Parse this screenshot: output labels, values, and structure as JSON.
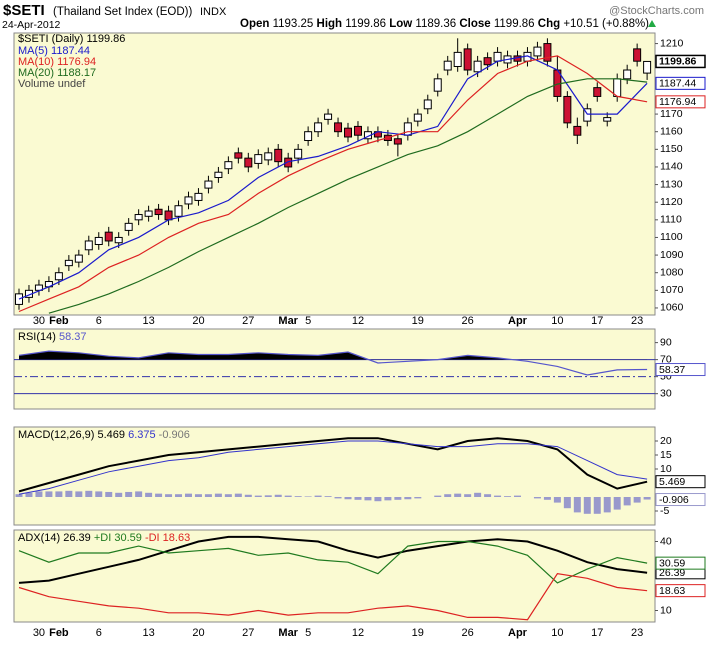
{
  "chart_data": [
    {
      "type": "candlestick",
      "title": "$SETI",
      "subtitle": "(Thailand Set Index (EOD))",
      "exchange": "INDX",
      "date": "24-Apr-2012",
      "watermark": "@StockCharts.com",
      "name": "$SETI (Daily)",
      "labels": {
        "open": "Open",
        "high": "High",
        "low": "Low",
        "close": "Close",
        "change": "Chg"
      },
      "change": "+10.51 (+0.88%)",
      "up_color": "#ffffff",
      "down_color": "#cc1133",
      "categories": [
        null,
        null,
        "30",
        null,
        "Feb",
        null,
        null,
        null,
        "6",
        null,
        null,
        null,
        null,
        "13",
        null,
        null,
        null,
        null,
        "20",
        null,
        null,
        null,
        null,
        "27",
        null,
        null,
        null,
        "Mar",
        null,
        "5",
        null,
        null,
        null,
        null,
        "12",
        null,
        null,
        null,
        null,
        null,
        "19",
        null,
        null,
        null,
        null,
        "26",
        null,
        null,
        null,
        null,
        "Apr",
        null,
        null,
        null,
        "10",
        null,
        null,
        null,
        "17",
        null,
        null,
        null,
        "23",
        null
      ],
      "open": [
        1062,
        1066,
        1070,
        1072,
        1076,
        1084,
        1086,
        1093,
        1096,
        1103,
        1097,
        1104,
        1110,
        1112,
        1116,
        1115,
        1112,
        1119,
        1121,
        1128,
        1134,
        1139,
        1148,
        1145,
        1142,
        1144,
        1150,
        1145,
        1145,
        1155,
        1160,
        1167,
        1165,
        1162,
        1163,
        1156,
        1160,
        1158,
        1156,
        1158,
        1166,
        1173,
        1183,
        1195,
        1197,
        1207,
        1194,
        1202,
        1200,
        1199,
        1203,
        1200,
        1203,
        1210,
        1195,
        1180,
        1163,
        1166,
        1185,
        1166,
        1180,
        1190,
        1207,
        1193.25
      ],
      "high": [
        1071,
        1073,
        1076,
        1078,
        1083,
        1090,
        1093,
        1101,
        1103,
        1106,
        1103,
        1111,
        1116,
        1118,
        1119,
        1118,
        1121,
        1126,
        1128,
        1135,
        1140,
        1146,
        1151,
        1148,
        1150,
        1151,
        1153,
        1148,
        1153,
        1163,
        1168,
        1173,
        1168,
        1165,
        1166,
        1163,
        1163,
        1161,
        1159,
        1168,
        1173,
        1181,
        1193,
        1203,
        1213,
        1210,
        1203,
        1205,
        1208,
        1206,
        1206,
        1208,
        1211,
        1213,
        1203,
        1183,
        1168,
        1176,
        1188,
        1171,
        1193,
        1198,
        1210,
        1199.86
      ],
      "low": [
        1059,
        1063,
        1067,
        1069,
        1073,
        1081,
        1083,
        1090,
        1093,
        1095,
        1094,
        1101,
        1107,
        1109,
        1110,
        1107,
        1109,
        1116,
        1118,
        1125,
        1131,
        1136,
        1142,
        1137,
        1139,
        1141,
        1140,
        1137,
        1142,
        1152,
        1157,
        1164,
        1157,
        1154,
        1155,
        1153,
        1154,
        1152,
        1146,
        1155,
        1163,
        1170,
        1180,
        1192,
        1194,
        1192,
        1191,
        1195,
        1197,
        1196,
        1197,
        1197,
        1200,
        1197,
        1177,
        1162,
        1153,
        1163,
        1177,
        1163,
        1177,
        1187,
        1197,
        1189.36
      ],
      "close": [
        1068,
        1070,
        1073,
        1075,
        1080,
        1087,
        1090,
        1098,
        1100,
        1098,
        1100,
        1108,
        1113,
        1115,
        1113,
        1110,
        1118,
        1123,
        1125,
        1132,
        1137,
        1143,
        1145,
        1140,
        1147,
        1148,
        1143,
        1140,
        1150,
        1160,
        1165,
        1170,
        1160,
        1157,
        1158,
        1160,
        1157,
        1155,
        1153,
        1165,
        1170,
        1178,
        1190,
        1200,
        1205,
        1195,
        1200,
        1198,
        1205,
        1203,
        1200,
        1205,
        1208,
        1200,
        1180,
        1165,
        1158,
        1173,
        1180,
        1168,
        1190,
        1195,
        1200,
        1199.86
      ],
      "x": [
        0,
        3,
        6,
        9,
        12,
        15,
        18,
        21,
        24,
        27,
        30,
        33,
        36,
        39,
        42,
        45,
        48,
        51,
        54,
        57,
        60,
        63
      ],
      "series": [
        {
          "name": "MA(5)",
          "color": "#1a1acc",
          "value_box": true,
          "values": [
            1065,
            1072,
            1080,
            1093,
            1100,
            1110,
            1114,
            1121,
            1134,
            1143,
            1146,
            1152,
            1160,
            1158,
            1163,
            1190,
            1200,
            1203,
            1195,
            1170,
            1170,
            1187.44
          ]
        },
        {
          "name": "MA(10)",
          "color": "#dd2222",
          "value_box": true,
          "values": [
            1058,
            1065,
            1072,
            1083,
            1090,
            1100,
            1108,
            1113,
            1125,
            1135,
            1143,
            1150,
            1155,
            1160,
            1160,
            1178,
            1193,
            1200,
            1203,
            1193,
            1180,
            1176.94
          ]
        },
        {
          "name": "MA(20)",
          "color": "#1f6b1f",
          "value_box": false,
          "values": [
            null,
            1057,
            1062,
            1068,
            1075,
            1083,
            1092,
            1100,
            1108,
            1117,
            1125,
            1133,
            1140,
            1147,
            1152,
            1160,
            1170,
            1180,
            1187,
            1190,
            1190,
            1188.17
          ]
        }
      ],
      "volume_label": "Volume undef",
      "ylim": [
        1056,
        1216
      ],
      "yticks": [
        1210,
        1170,
        1160,
        1150,
        1140,
        1130,
        1120,
        1110,
        1100,
        1090,
        1080,
        1070,
        1060
      ]
    },
    {
      "type": "line",
      "title": "RSI(14)",
      "x": [
        0,
        3,
        6,
        9,
        12,
        15,
        18,
        21,
        24,
        27,
        30,
        33,
        36,
        39,
        42,
        45,
        48,
        51,
        54,
        57,
        60,
        63
      ],
      "series": [
        {
          "color": "#5555cc",
          "value_box": true,
          "values": [
            75,
            80,
            78,
            74,
            72,
            78,
            76,
            76,
            78,
            76,
            75,
            79,
            66,
            68,
            70,
            75,
            72,
            68,
            62,
            52,
            58,
            58.37
          ]
        }
      ],
      "fill_above": 70,
      "fill_color": "#000000",
      "reference_lines": [
        70,
        50,
        30
      ],
      "reference_dash": [
        false,
        true,
        false
      ],
      "reference_color": "#3333aa",
      "ylim": [
        12,
        106
      ],
      "yticks": [
        90,
        70,
        50,
        30
      ]
    },
    {
      "type": "macd",
      "title": "MACD(12,26,9)",
      "x": [
        0,
        3,
        6,
        9,
        12,
        15,
        18,
        21,
        24,
        27,
        30,
        33,
        36,
        39,
        42,
        45,
        48,
        51,
        54,
        57,
        60,
        63
      ],
      "series": [
        {
          "color": "#000000",
          "width": 2,
          "value_box": true,
          "values": [
            2,
            5,
            8,
            11,
            13,
            15,
            16,
            17,
            18,
            19,
            20,
            21,
            21,
            19,
            17,
            20,
            21,
            20,
            17,
            8,
            3,
            5.469
          ]
        },
        {
          "color": "#3333cc",
          "width": 1,
          "value_box": false,
          "values": [
            1,
            3,
            6,
            9,
            11,
            13,
            14,
            16,
            17,
            18,
            19,
            20,
            20,
            19,
            18,
            18,
            19,
            19,
            18,
            13,
            8,
            6.375
          ]
        }
      ],
      "histogram": {
        "color": "#9999cc",
        "value_box": true,
        "values": [
          1,
          1.5,
          2,
          2,
          2,
          2.2,
          2,
          2.2,
          2,
          1.8,
          1.5,
          1.8,
          2,
          1.5,
          1.2,
          1,
          1,
          1.2,
          1,
          1,
          1.2,
          1,
          1.2,
          0.8,
          0.5,
          0.6,
          0.8,
          0.5,
          0.3,
          0.2,
          0.5,
          0.3,
          -0.5,
          -0.8,
          -1,
          -1.2,
          -1.5,
          -1.2,
          -1,
          -0.8,
          -0.5,
          0,
          0.5,
          1,
          1.2,
          1,
          1.5,
          1,
          0.5,
          0.3,
          0.5,
          0,
          -0.5,
          -1,
          -2,
          -4,
          -5.5,
          -6,
          -6,
          -5.5,
          -4.5,
          -3,
          -2,
          -0.906
        ]
      },
      "ylim": [
        -10,
        25
      ],
      "yticks": [
        20,
        15,
        10,
        -5
      ]
    },
    {
      "type": "line",
      "title": "ADX(14)",
      "x": [
        0,
        3,
        6,
        9,
        12,
        15,
        18,
        21,
        24,
        27,
        30,
        33,
        36,
        39,
        42,
        45,
        48,
        51,
        54,
        57,
        60,
        63
      ],
      "series": [
        {
          "color": "#000000",
          "width": 2,
          "value_box": true,
          "values": [
            22,
            23,
            26,
            29,
            32,
            36,
            40,
            42,
            42,
            41,
            40,
            36,
            33,
            36,
            38,
            40,
            41,
            40,
            36,
            31,
            28,
            26.39
          ]
        },
        {
          "name": "+DI",
          "color": "#1f7a1f",
          "value_box": true,
          "values": [
            36,
            31,
            35,
            35,
            38,
            35,
            36,
            37,
            34,
            35,
            32,
            31,
            26,
            38,
            40,
            40,
            38,
            34,
            22,
            28,
            33,
            30.59
          ]
        },
        {
          "name": "-DI",
          "color": "#dd2222",
          "value_box": true,
          "values": [
            20,
            16,
            14,
            12,
            11,
            9,
            9,
            8,
            10,
            8,
            9,
            9,
            11,
            12,
            10,
            7,
            7,
            6,
            26,
            24,
            20,
            18.63
          ]
        }
      ],
      "ylim": [
        5,
        45
      ],
      "yticks": [
        40,
        10
      ]
    }
  ]
}
